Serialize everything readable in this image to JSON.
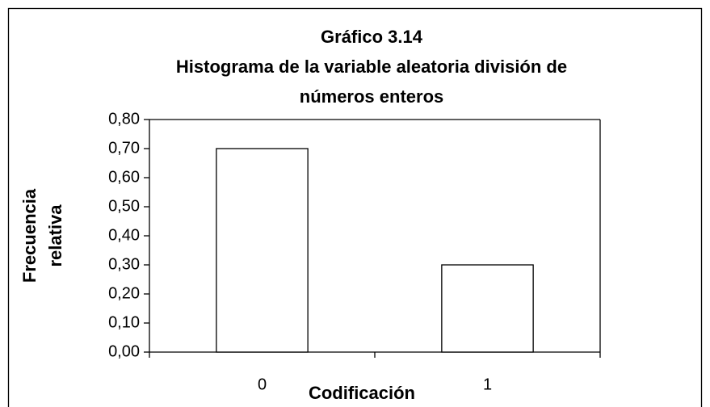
{
  "chart_data": {
    "type": "bar",
    "title": [
      "Gráfico 3.14",
      "Histograma de la variable aleatoria división de",
      "números enteros"
    ],
    "x_label": "Codificación",
    "y_label": [
      "Frecuencia",
      "relativa"
    ],
    "categories": [
      "0",
      "1"
    ],
    "values": [
      0.7,
      0.3
    ],
    "color": "#ffffff",
    "ylim": [
      0,
      0.8
    ],
    "yticks": [
      {
        "value": 0,
        "label": "0,00"
      },
      {
        "value": 0.1,
        "label": "0,10"
      },
      {
        "value": 0.2,
        "label": "0,20"
      },
      {
        "value": 0.3,
        "label": "0,30"
      },
      {
        "value": 0.4,
        "label": "0,40"
      },
      {
        "value": 0.5,
        "label": "0,50"
      },
      {
        "value": 0.6,
        "label": "0,60"
      },
      {
        "value": 0.7,
        "label": "0,70"
      },
      {
        "value": 0.8,
        "label": "0,80"
      }
    ],
    "grid": false
  }
}
